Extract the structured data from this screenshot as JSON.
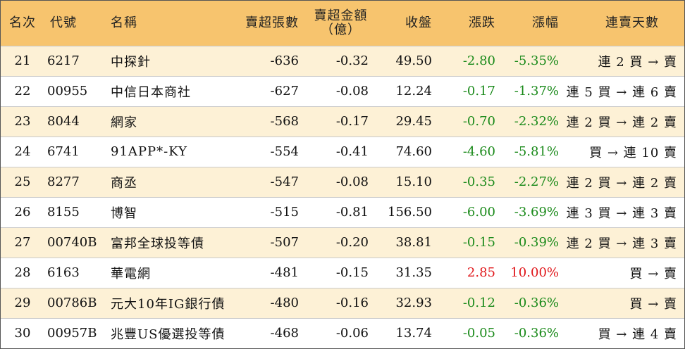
{
  "header": {
    "rank": "名次",
    "code": "代號",
    "name": "名稱",
    "sell_shares": "賣超張數",
    "sell_amount_line1": "賣超金額",
    "sell_amount_line2": "（億）",
    "close": "收盤",
    "change": "漲跌",
    "pct": "漲幅",
    "streak": "連賣天數"
  },
  "colors": {
    "header_bg": "#f7c46e",
    "row_alt_bg": "#fdf1d6",
    "down": "#1a8a1a",
    "up": "#e0161a"
  },
  "rows": [
    {
      "rank": "21",
      "code": "6217",
      "name": "中探針",
      "shares": "-636",
      "amount": "-0.32",
      "close": "49.50",
      "change": "-2.80",
      "pct": "-5.35%",
      "dir": "down",
      "streak": "連 2 買 → 賣"
    },
    {
      "rank": "22",
      "code": "00955",
      "name": "中信日本商社",
      "shares": "-627",
      "amount": "-0.08",
      "close": "12.24",
      "change": "-0.17",
      "pct": "-1.37%",
      "dir": "down",
      "streak": "連 5 買 → 連 6 賣"
    },
    {
      "rank": "23",
      "code": "8044",
      "name": "網家",
      "shares": "-568",
      "amount": "-0.17",
      "close": "29.45",
      "change": "-0.70",
      "pct": "-2.32%",
      "dir": "down",
      "streak": "連 2 買 → 連 2 賣"
    },
    {
      "rank": "24",
      "code": "6741",
      "name": "91APP*-KY",
      "shares": "-554",
      "amount": "-0.41",
      "close": "74.60",
      "change": "-4.60",
      "pct": "-5.81%",
      "dir": "down",
      "streak": "買 → 連 10 賣"
    },
    {
      "rank": "25",
      "code": "8277",
      "name": "商丞",
      "shares": "-547",
      "amount": "-0.08",
      "close": "15.10",
      "change": "-0.35",
      "pct": "-2.27%",
      "dir": "down",
      "streak": "連 2 買 → 連 2 賣"
    },
    {
      "rank": "26",
      "code": "8155",
      "name": "博智",
      "shares": "-515",
      "amount": "-0.81",
      "close": "156.50",
      "change": "-6.00",
      "pct": "-3.69%",
      "dir": "down",
      "streak": "連 3 買 → 連 3 賣"
    },
    {
      "rank": "27",
      "code": "00740B",
      "name": "富邦全球投等債",
      "shares": "-507",
      "amount": "-0.20",
      "close": "38.81",
      "change": "-0.15",
      "pct": "-0.39%",
      "dir": "down",
      "streak": "連 2 買 → 連 3 賣"
    },
    {
      "rank": "28",
      "code": "6163",
      "name": "華電網",
      "shares": "-481",
      "amount": "-0.15",
      "close": "31.35",
      "change": "2.85",
      "pct": "10.00%",
      "dir": "up",
      "streak": "買 → 賣"
    },
    {
      "rank": "29",
      "code": "00786B",
      "name": "元大10年IG銀行債",
      "shares": "-480",
      "amount": "-0.16",
      "close": "32.93",
      "change": "-0.12",
      "pct": "-0.36%",
      "dir": "down",
      "streak": "買 → 賣"
    },
    {
      "rank": "30",
      "code": "00957B",
      "name": "兆豐US優選投等債",
      "shares": "-468",
      "amount": "-0.06",
      "close": "13.74",
      "change": "-0.05",
      "pct": "-0.36%",
      "dir": "down",
      "streak": "買 → 連 4 賣"
    }
  ]
}
